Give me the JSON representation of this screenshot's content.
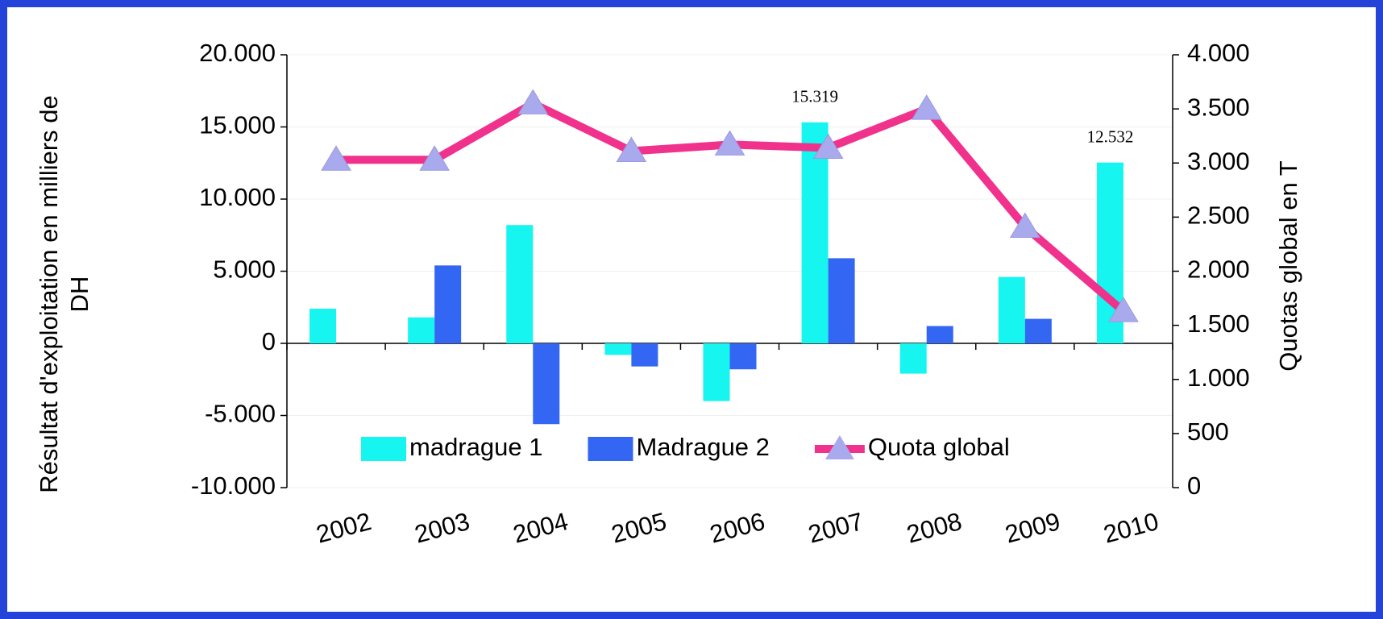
{
  "chart_data": {
    "type": "bar",
    "categories": [
      "2002",
      "2003",
      "2004",
      "2005",
      "2006",
      "2007",
      "2008",
      "2009",
      "2010"
    ],
    "ylabel": "Résultat d'exploitation en milliers de DH",
    "y2label": "Quotas global en T",
    "ylim": [
      -10000,
      20000
    ],
    "yticks": [
      {
        "value": -10000,
        "label": "-10.000"
      },
      {
        "value": -5000,
        "label": "-5.000"
      },
      0,
      {
        "value": 5000,
        "label": "5.000"
      },
      {
        "value": 10000,
        "label": "10.000"
      },
      {
        "value": 15000,
        "label": "15.000"
      },
      {
        "value": 20000,
        "label": "20.000"
      }
    ],
    "y2lim": [
      0,
      4000
    ],
    "y2ticks": [
      0,
      500,
      {
        "value": 1000,
        "label": "1.000"
      },
      {
        "value": 1500,
        "label": "1.500"
      },
      {
        "value": 2000,
        "label": "2.000"
      },
      {
        "value": 2500,
        "label": "2.500"
      },
      {
        "value": 3000,
        "label": "3.000"
      },
      {
        "value": 3500,
        "label": "3.500"
      },
      {
        "value": 4000,
        "label": "4.000"
      }
    ],
    "grid": true,
    "legend": "bottom",
    "series": [
      {
        "name": "madrague 1",
        "type": "bar",
        "color": "#16f5ef",
        "values": [
          2400,
          1800,
          8200,
          -800,
          -4000,
          15319,
          -2100,
          4600,
          12532
        ],
        "value_labels": [
          null,
          null,
          null,
          null,
          null,
          "15.319",
          null,
          null,
          "12.532"
        ]
      },
      {
        "name": "Madrague 2",
        "type": "bar",
        "color": "#3366f2",
        "values": [
          null,
          5400,
          -5600,
          -1600,
          -1800,
          5900,
          1200,
          1700,
          null
        ]
      },
      {
        "name": "Quota global",
        "type": "line",
        "axis": "y2",
        "color": "#f0328c",
        "marker_color": "#a9a9ee",
        "values": [
          3030,
          3030,
          3550,
          3110,
          3170,
          3140,
          3500,
          2410,
          1630
        ]
      }
    ]
  }
}
